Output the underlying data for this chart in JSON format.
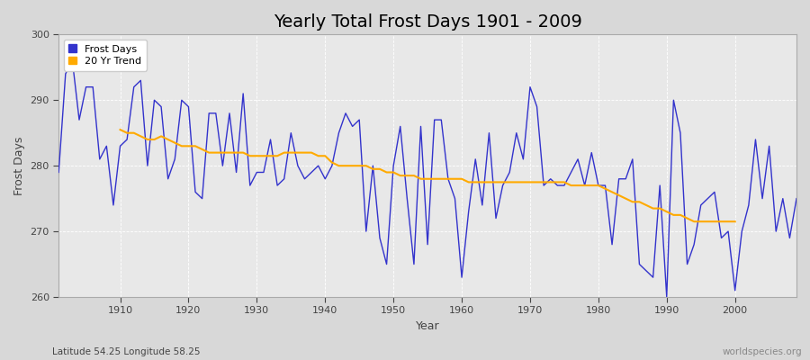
{
  "title": "Yearly Total Frost Days 1901 - 2009",
  "xlabel": "Year",
  "ylabel": "Frost Days",
  "lat_lon_label": "Latitude 54.25 Longitude 58.25",
  "source_label": "worldspecies.org",
  "years": [
    1901,
    1902,
    1903,
    1904,
    1905,
    1906,
    1907,
    1908,
    1909,
    1910,
    1911,
    1912,
    1913,
    1914,
    1915,
    1916,
    1917,
    1918,
    1919,
    1920,
    1921,
    1922,
    1923,
    1924,
    1925,
    1926,
    1927,
    1928,
    1929,
    1930,
    1931,
    1932,
    1933,
    1934,
    1935,
    1936,
    1937,
    1938,
    1939,
    1940,
    1941,
    1942,
    1943,
    1944,
    1945,
    1946,
    1947,
    1948,
    1949,
    1950,
    1951,
    1952,
    1953,
    1954,
    1955,
    1956,
    1957,
    1958,
    1959,
    1960,
    1961,
    1962,
    1963,
    1964,
    1965,
    1966,
    1967,
    1968,
    1969,
    1970,
    1971,
    1972,
    1973,
    1974,
    1975,
    1976,
    1977,
    1978,
    1979,
    1980,
    1981,
    1982,
    1983,
    1984,
    1985,
    1986,
    1987,
    1988,
    1989,
    1990,
    1991,
    1992,
    1993,
    1994,
    1995,
    1996,
    1997,
    1998,
    1999,
    2000,
    2001,
    2002,
    2003,
    2004,
    2005,
    2006,
    2007,
    2008,
    2009
  ],
  "frost_days": [
    279,
    294,
    296,
    287,
    292,
    292,
    281,
    283,
    274,
    283,
    284,
    292,
    293,
    280,
    290,
    289,
    278,
    281,
    290,
    289,
    276,
    275,
    288,
    288,
    280,
    288,
    279,
    291,
    277,
    279,
    279,
    284,
    277,
    278,
    285,
    280,
    278,
    279,
    280,
    278,
    280,
    285,
    288,
    286,
    287,
    270,
    280,
    269,
    265,
    280,
    286,
    275,
    265,
    286,
    268,
    287,
    287,
    278,
    275,
    263,
    273,
    281,
    274,
    285,
    272,
    277,
    279,
    285,
    281,
    292,
    289,
    277,
    278,
    277,
    277,
    279,
    281,
    277,
    282,
    277,
    277,
    268,
    278,
    278,
    281,
    265,
    264,
    263,
    277,
    260,
    290,
    285,
    265,
    268,
    274,
    275,
    276,
    269,
    270,
    261,
    270,
    274,
    284,
    275,
    283,
    270,
    275,
    269,
    275
  ],
  "trend_years": [
    1910,
    1911,
    1912,
    1913,
    1914,
    1915,
    1916,
    1917,
    1918,
    1919,
    1920,
    1921,
    1922,
    1923,
    1924,
    1925,
    1926,
    1927,
    1928,
    1929,
    1930,
    1931,
    1932,
    1933,
    1934,
    1935,
    1936,
    1937,
    1938,
    1939,
    1940,
    1941,
    1942,
    1943,
    1944,
    1945,
    1946,
    1947,
    1948,
    1949,
    1950,
    1951,
    1952,
    1953,
    1954,
    1955,
    1956,
    1957,
    1958,
    1959,
    1960,
    1961,
    1962,
    1963,
    1964,
    1965,
    1966,
    1967,
    1968,
    1969,
    1970,
    1971,
    1972,
    1973,
    1974,
    1975,
    1976,
    1977,
    1978,
    1979,
    1980,
    1981,
    1982,
    1983,
    1984,
    1985,
    1986,
    1987,
    1988,
    1989,
    1990,
    1991,
    1992,
    1993,
    1994,
    1995,
    1996,
    1997,
    1998,
    1999,
    2000
  ],
  "trend_values": [
    285.5,
    285.0,
    285.0,
    284.5,
    284.0,
    284.0,
    284.5,
    284.0,
    283.5,
    283.0,
    283.0,
    283.0,
    282.5,
    282.0,
    282.0,
    282.0,
    282.0,
    282.0,
    282.0,
    281.5,
    281.5,
    281.5,
    281.5,
    281.5,
    282.0,
    282.0,
    282.0,
    282.0,
    282.0,
    281.5,
    281.5,
    280.5,
    280.0,
    280.0,
    280.0,
    280.0,
    280.0,
    279.5,
    279.5,
    279.0,
    279.0,
    278.5,
    278.5,
    278.5,
    278.0,
    278.0,
    278.0,
    278.0,
    278.0,
    278.0,
    278.0,
    277.5,
    277.5,
    277.5,
    277.5,
    277.5,
    277.5,
    277.5,
    277.5,
    277.5,
    277.5,
    277.5,
    277.5,
    277.5,
    277.5,
    277.5,
    277.0,
    277.0,
    277.0,
    277.0,
    277.0,
    276.5,
    276.0,
    275.5,
    275.0,
    274.5,
    274.5,
    274.0,
    273.5,
    273.5,
    273.0,
    272.5,
    272.5,
    272.0,
    271.5,
    271.5,
    271.5,
    271.5,
    271.5,
    271.5,
    271.5
  ],
  "line_color": "#3333cc",
  "trend_color": "#ffaa00",
  "fig_bg_color": "#d8d8d8",
  "plot_bg_color": "#e8e8e8",
  "ylim": [
    260,
    300
  ],
  "yticks": [
    260,
    270,
    280,
    290,
    300
  ],
  "xticks": [
    1910,
    1920,
    1930,
    1940,
    1950,
    1960,
    1970,
    1980,
    1990,
    2000
  ],
  "title_fontsize": 14,
  "label_fontsize": 9,
  "tick_fontsize": 8,
  "legend_fontsize": 8
}
